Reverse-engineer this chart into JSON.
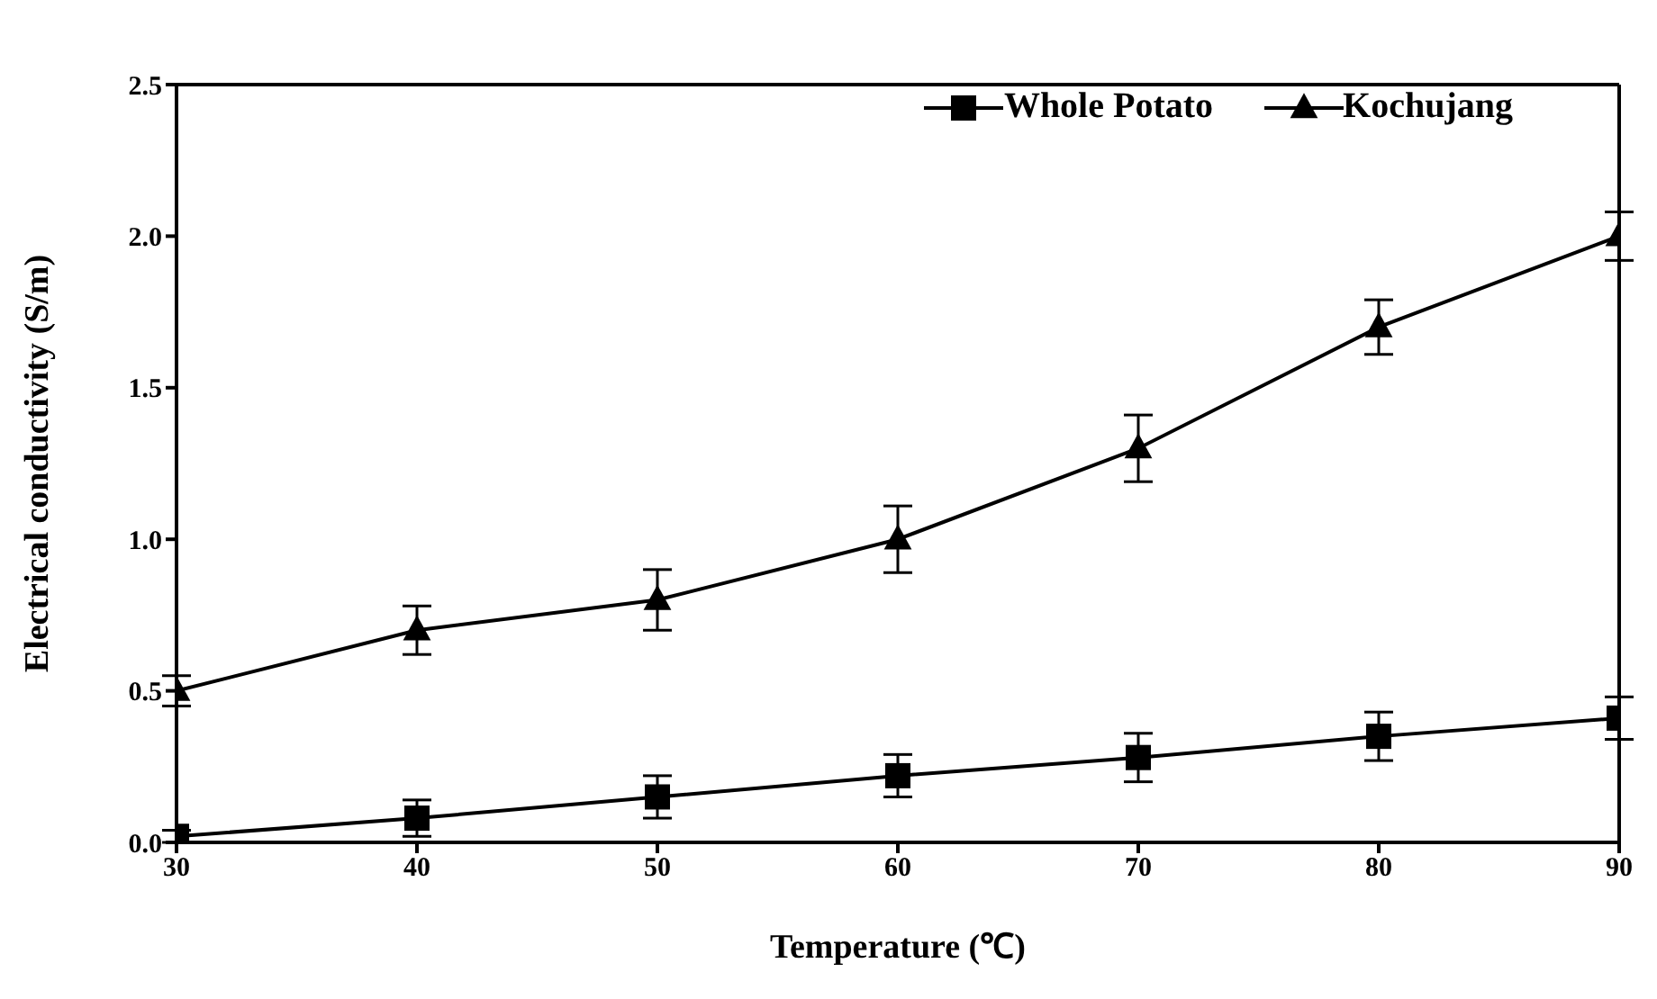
{
  "chart_data": {
    "type": "line",
    "xlabel": "Temperature (℃)",
    "ylabel": "Electrical conductivity (S/m)",
    "x": [
      30,
      40,
      50,
      60,
      70,
      80,
      90
    ],
    "series": [
      {
        "name": "Whole Potato",
        "color": "#000000",
        "marker": "square",
        "values": [
          0.02,
          0.08,
          0.15,
          0.22,
          0.28,
          0.35,
          0.41
        ],
        "errors": [
          0.02,
          0.06,
          0.07,
          0.07,
          0.08,
          0.08,
          0.07
        ]
      },
      {
        "name": "Kochujang",
        "color": "#000000",
        "marker": "triangle",
        "values": [
          0.5,
          0.7,
          0.8,
          1.0,
          1.3,
          1.7,
          2.0
        ],
        "errors": [
          0.05,
          0.08,
          0.1,
          0.11,
          0.11,
          0.09,
          0.08
        ]
      }
    ],
    "xlim": [
      30,
      90
    ],
    "xticks": [
      30,
      40,
      50,
      60,
      70,
      80,
      90
    ],
    "ylim": [
      0,
      2.5
    ],
    "yticks": [
      {
        "value": 0,
        "label": "0.0"
      },
      0.5,
      {
        "value": 1,
        "label": "1.0"
      },
      1.5,
      {
        "value": 2,
        "label": "2.0"
      },
      2.5
    ],
    "grid": false,
    "legend": "top right",
    "line_style": "solid"
  }
}
